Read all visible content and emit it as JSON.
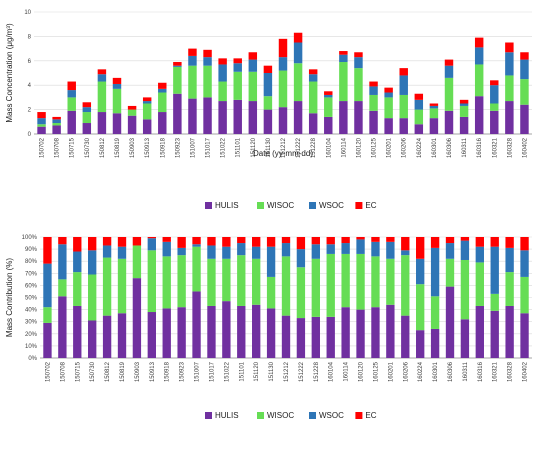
{
  "chart_data": [
    {
      "type": "bar",
      "stacked": true,
      "ylabel": "Mass Concentration (μg/m³)",
      "xlabel": "Date (yy-mm-dd)",
      "ylim": [
        0,
        10
      ],
      "yticks": [
        "0",
        "2",
        "4",
        "6",
        "8",
        "10"
      ],
      "grid": true,
      "legend_position": "bottom",
      "categories": [
        "150702",
        "150708",
        "150715",
        "150730",
        "150812",
        "150819",
        "150903",
        "150913",
        "150918",
        "150923",
        "151007",
        "151017",
        "151022",
        "151101",
        "151120",
        "151130",
        "151212",
        "151222",
        "151228",
        "160104",
        "160114",
        "160120",
        "160125",
        "160201",
        "160206",
        "160224",
        "160301",
        "160306",
        "160311",
        "160316",
        "160321",
        "160328",
        "160402"
      ],
      "series": [
        {
          "name": "HULIS",
          "color": "#7030a0",
          "values": [
            0.6,
            0.7,
            1.9,
            0.9,
            1.8,
            1.7,
            1.5,
            1.2,
            1.8,
            3.3,
            2.9,
            3.0,
            2.7,
            2.8,
            2.7,
            2.0,
            2.2,
            2.7,
            1.7,
            1.4,
            2.7,
            2.7,
            1.9,
            1.3,
            1.3,
            0.8,
            1.3,
            1.9,
            1.4,
            3.1,
            1.9,
            2.7,
            2.4
          ]
        },
        {
          "name": "WISOC",
          "color": "#66dd55",
          "values": [
            0.2,
            0.2,
            1.1,
            0.9,
            2.5,
            2.0,
            0.5,
            1.3,
            1.6,
            2.2,
            2.7,
            2.6,
            1.6,
            2.3,
            2.4,
            1.1,
            3.0,
            3.1,
            2.6,
            1.6,
            3.2,
            2.7,
            1.3,
            1.7,
            1.9,
            1.2,
            0.8,
            2.7,
            0.9,
            2.6,
            0.6,
            2.1,
            2.1
          ]
        },
        {
          "name": "WSOC",
          "color": "#2e75b6",
          "values": [
            0.5,
            0.3,
            0.6,
            0.4,
            0.6,
            0.4,
            0.0,
            0.2,
            0.3,
            0.1,
            0.8,
            0.7,
            1.4,
            0.7,
            1.0,
            1.9,
            1.1,
            1.7,
            0.6,
            0.2,
            0.6,
            0.9,
            0.7,
            0.4,
            1.6,
            0.8,
            0.2,
            1.0,
            0.2,
            1.4,
            1.5,
            1.9,
            1.6
          ]
        },
        {
          "name": "EC",
          "color": "#ff0000",
          "values": [
            0.5,
            0.2,
            0.7,
            0.4,
            0.4,
            0.5,
            0.3,
            0.3,
            0.5,
            0.3,
            0.6,
            0.6,
            0.5,
            0.4,
            0.6,
            0.6,
            1.5,
            0.8,
            0.4,
            0.3,
            0.3,
            0.4,
            0.4,
            0.4,
            0.6,
            0.5,
            0.2,
            0.5,
            0.3,
            0.8,
            0.4,
            0.8,
            0.6
          ]
        }
      ]
    },
    {
      "type": "bar",
      "stacked": true,
      "ylabel": "Mass Contribution (%)",
      "ylim": [
        0,
        100
      ],
      "yticks": [
        "0%",
        "10%",
        "20%",
        "30%",
        "40%",
        "50%",
        "60%",
        "70%",
        "80%",
        "90%",
        "100%"
      ],
      "grid": true,
      "legend_position": "bottom",
      "categories": [
        "150702",
        "150708",
        "150715",
        "150730",
        "150812",
        "150819",
        "150903",
        "150913",
        "150918",
        "150923",
        "151007",
        "151017",
        "151022",
        "151101",
        "151120",
        "151130",
        "151212",
        "151222",
        "151228",
        "160104",
        "160114",
        "160120",
        "160125",
        "160201",
        "160206",
        "160224",
        "160301",
        "160306",
        "160311",
        "160316",
        "160321",
        "160328",
        "160402"
      ],
      "series": [
        {
          "name": "HULIS",
          "color": "#7030a0",
          "values": [
            29,
            51,
            43,
            31,
            35,
            37,
            66,
            38,
            41,
            42,
            55,
            43,
            47,
            43,
            44,
            41,
            35,
            33,
            34,
            34,
            42,
            40,
            42,
            44,
            35,
            23,
            24,
            59,
            32,
            43,
            39,
            43,
            37
          ]
        },
        {
          "name": "WISOC",
          "color": "#66dd55",
          "values": [
            13,
            14,
            28,
            38,
            48,
            45,
            27,
            51,
            43,
            43,
            37,
            39,
            35,
            42,
            38,
            26,
            49,
            42,
            48,
            52,
            44,
            46,
            42,
            38,
            50,
            38,
            27,
            23,
            49,
            36,
            14,
            28,
            30
          ]
        },
        {
          "name": "WSOC",
          "color": "#2e75b6",
          "values": [
            36,
            29,
            17,
            20,
            10,
            10,
            0,
            10,
            12,
            6,
            2,
            11,
            10,
            10,
            10,
            25,
            11,
            15,
            12,
            8,
            9,
            12,
            12,
            14,
            4,
            21,
            40,
            13,
            16,
            13,
            39,
            20,
            22
          ]
        },
        {
          "name": "EC",
          "color": "#ff0000",
          "values": [
            22,
            6,
            12,
            11,
            7,
            8,
            7,
            1,
            4,
            9,
            6,
            7,
            8,
            5,
            8,
            8,
            5,
            10,
            6,
            6,
            5,
            2,
            4,
            4,
            11,
            18,
            9,
            5,
            3,
            8,
            8,
            9,
            11
          ]
        }
      ]
    }
  ]
}
